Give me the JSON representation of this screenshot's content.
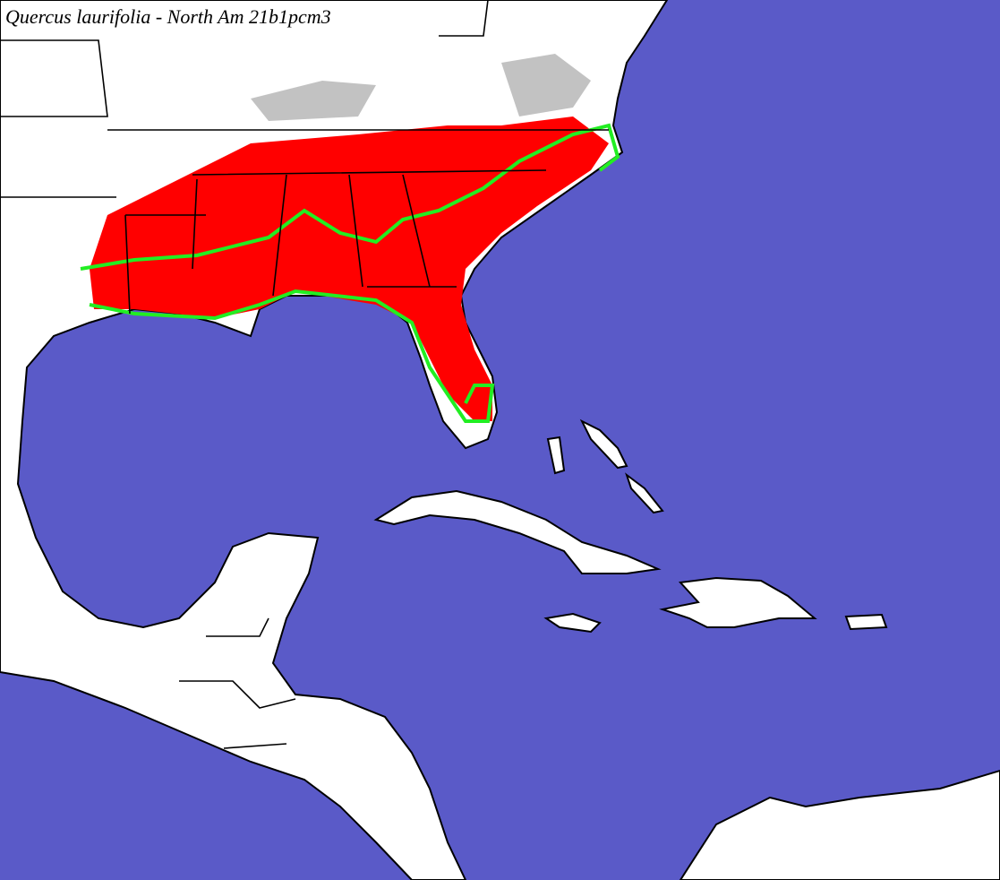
{
  "title": {
    "species": "Quercus laurifolia",
    "suffix": "- North Am 21b1pcm3"
  }
}
